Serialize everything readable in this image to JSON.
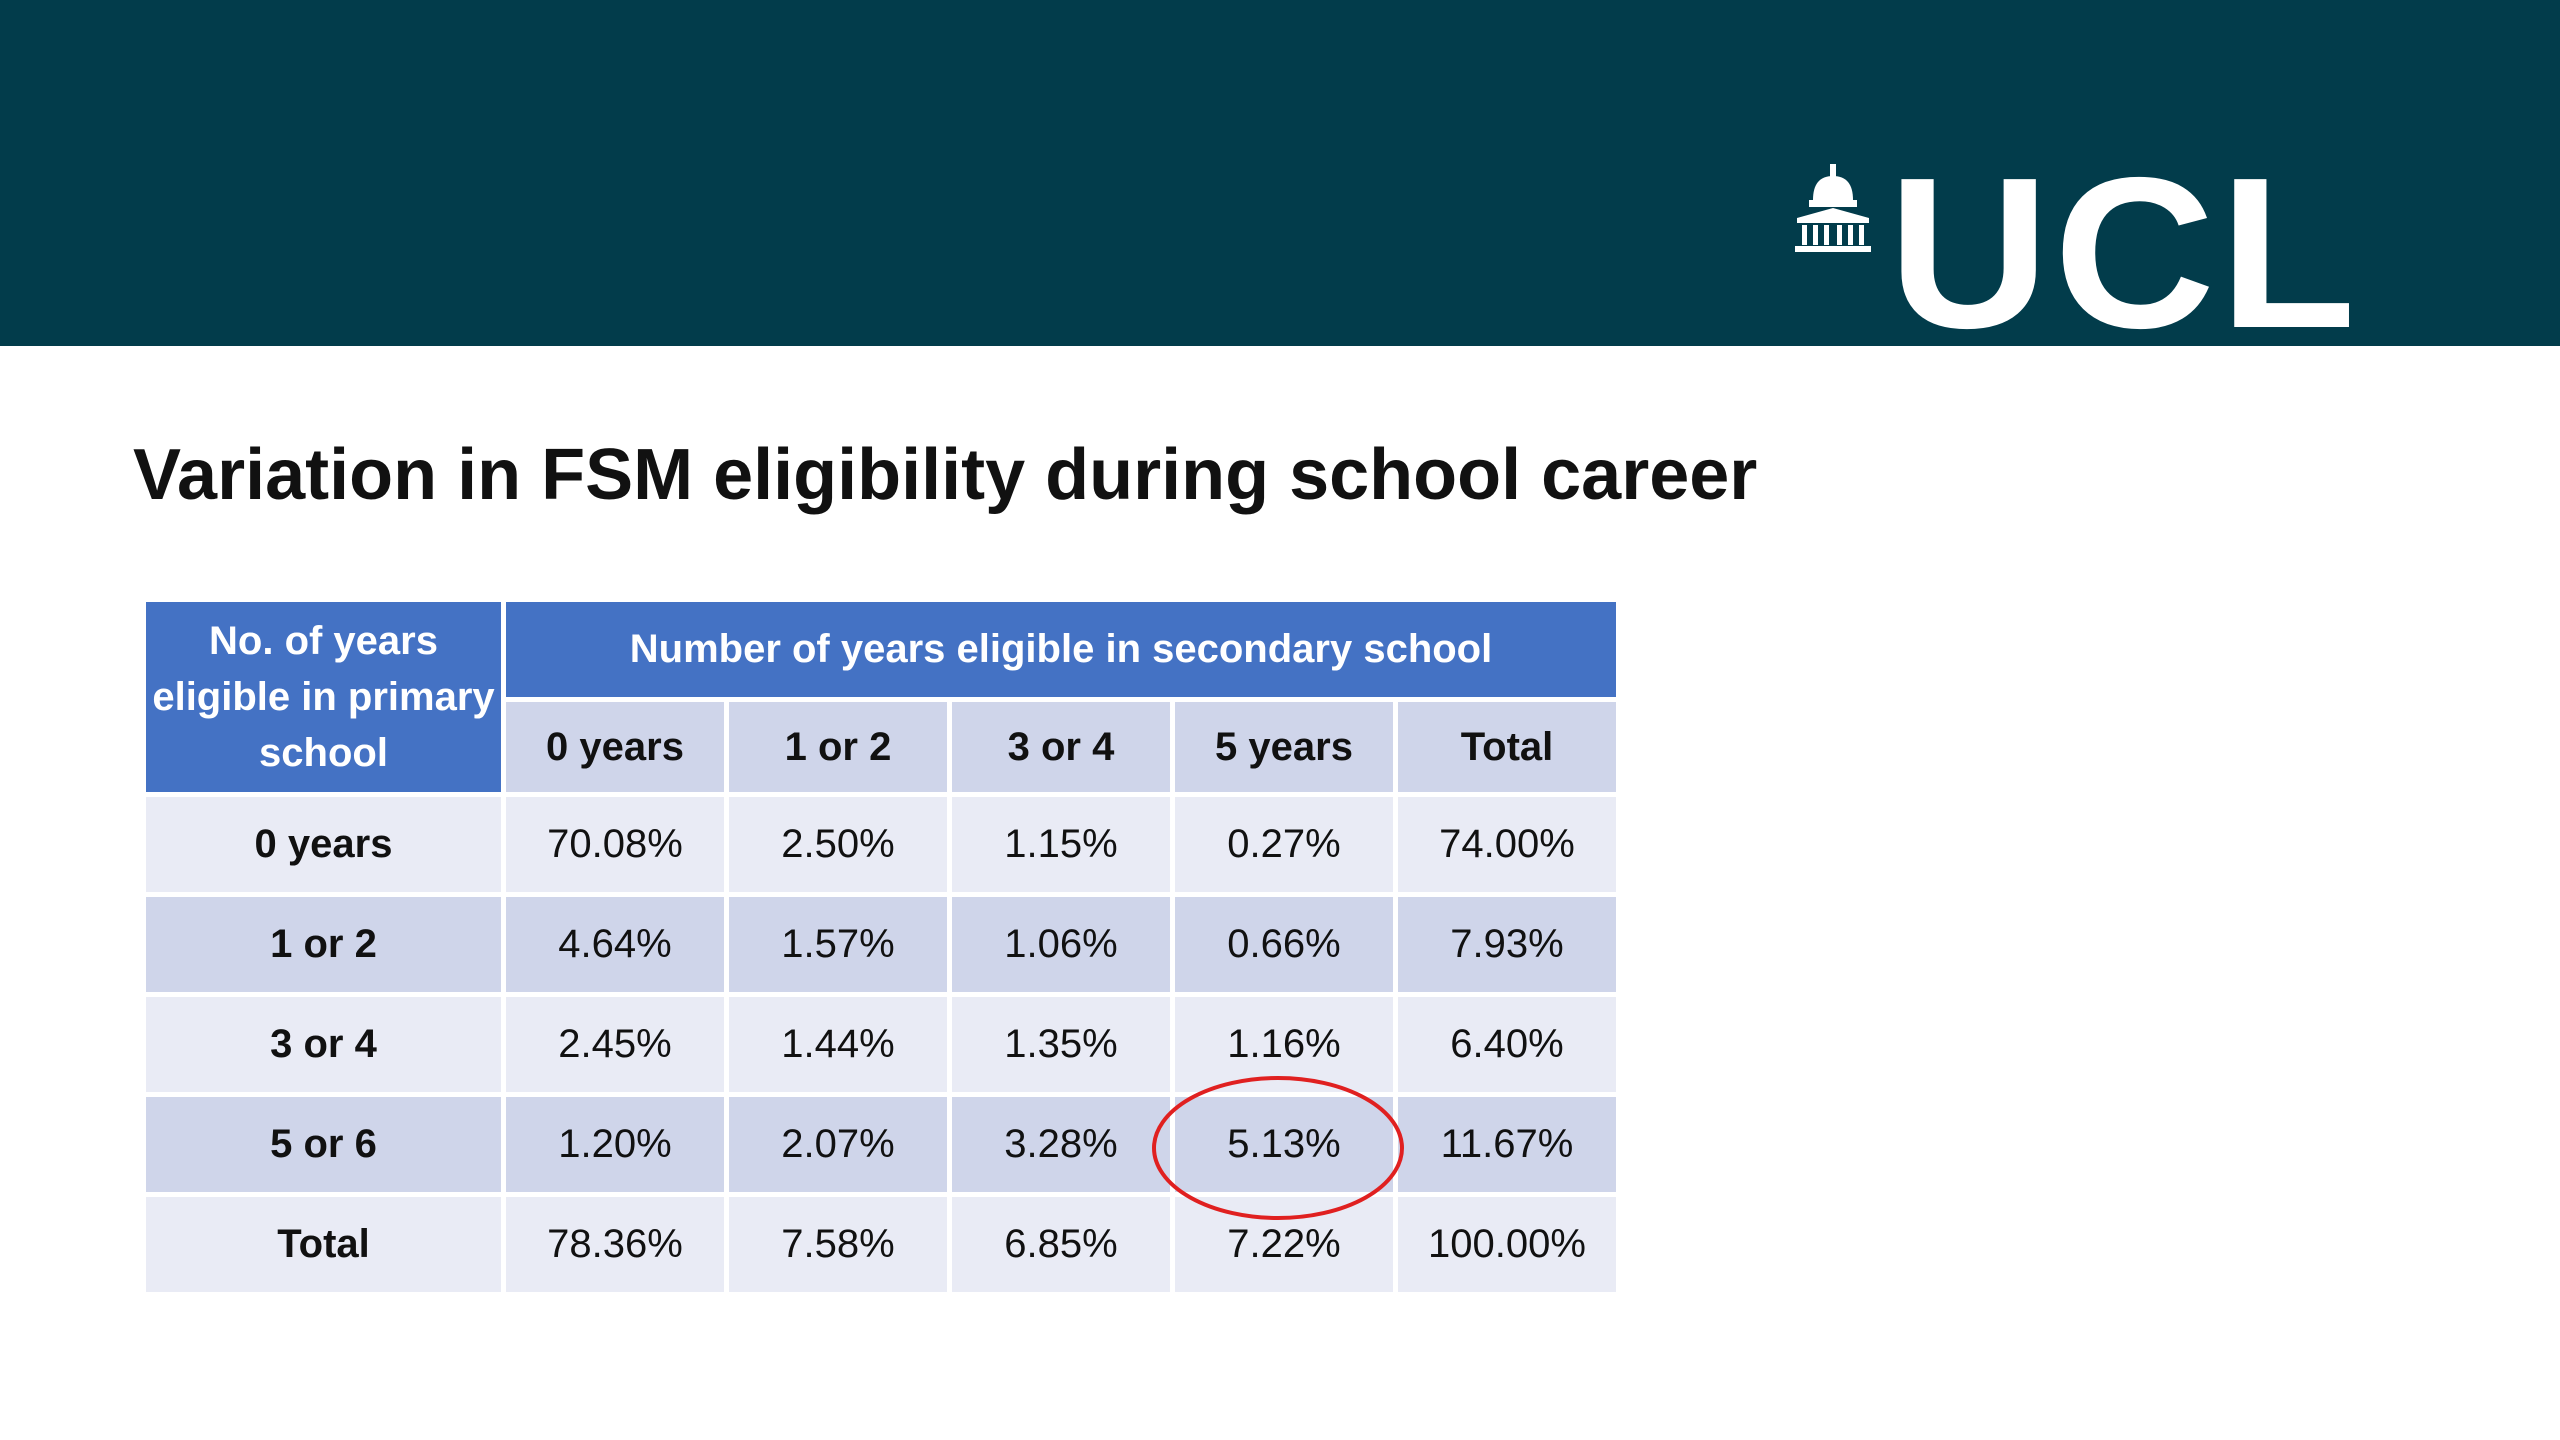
{
  "banner": {
    "logo_text": "UCL",
    "logo_icon": "portico-icon",
    "background_color": "#023c4b"
  },
  "slide": {
    "title": "Variation in FSM eligibility during school career"
  },
  "table": {
    "corner_header": "No. of years eligible in primary school",
    "group_header": "Number of years eligible in secondary school",
    "columns": [
      "0 years",
      "1 or 2",
      "3 or 4",
      "5 years",
      "Total"
    ],
    "rows": [
      {
        "label": "0 years",
        "values": [
          "70.08%",
          "2.50%",
          "1.15%",
          "0.27%",
          "74.00%"
        ]
      },
      {
        "label": "1 or 2",
        "values": [
          "4.64%",
          "1.57%",
          "1.06%",
          "0.66%",
          "7.93%"
        ]
      },
      {
        "label": "3 or 4",
        "values": [
          "2.45%",
          "1.44%",
          "1.35%",
          "1.16%",
          "6.40%"
        ]
      },
      {
        "label": "5 or 6",
        "values": [
          "1.20%",
          "2.07%",
          "3.28%",
          "5.13%",
          "11.67%"
        ]
      },
      {
        "label": "Total",
        "values": [
          "78.36%",
          "7.58%",
          "6.85%",
          "7.22%",
          "100.00%"
        ]
      }
    ],
    "header_color": "#4472c4",
    "band_colors": [
      "#e9ebf5",
      "#cfd5ea"
    ]
  },
  "annotation": {
    "highlighted_cell": "5 or 6 / 5 years",
    "ring_color": "#e02020"
  }
}
